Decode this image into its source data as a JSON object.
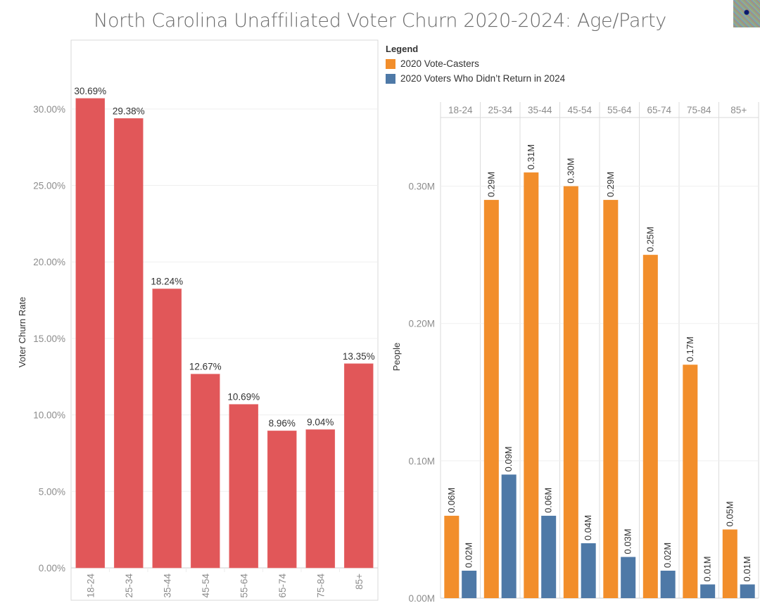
{
  "title": "North Carolina Unaffiliated Voter Churn 2020-2024: Age/Party",
  "thumbnail_icon": "map-thumbnail-icon",
  "legend": {
    "title": "Legend",
    "items": [
      {
        "label": "2020 Vote-Casters",
        "color": "#F28E2B"
      },
      {
        "label": "2020 Voters Who Didn’t Return in 2024",
        "color": "#4E79A7"
      }
    ]
  },
  "chart_data": [
    {
      "type": "bar",
      "title": "",
      "xlabel": "",
      "ylabel": "Voter Churn Rate",
      "categories": [
        "18-24",
        "25-34",
        "35-44",
        "45-54",
        "55-64",
        "65-74",
        "75-84",
        "85+"
      ],
      "values": [
        30.69,
        29.38,
        18.24,
        12.67,
        10.69,
        8.96,
        9.04,
        13.35
      ],
      "data_labels": [
        "30.69%",
        "29.38%",
        "18.24%",
        "12.67%",
        "10.69%",
        "8.96%",
        "9.04%",
        "13.35%"
      ],
      "yticks": [
        0,
        5,
        10,
        15,
        20,
        25,
        30
      ],
      "ytick_labels": [
        "0.00%",
        "5.00%",
        "10.00%",
        "15.00%",
        "20.00%",
        "25.00%",
        "30.00%"
      ],
      "ylim": [
        0,
        34.5
      ],
      "color": "#E15759",
      "grid": true,
      "x_label_orientation": "vertical"
    },
    {
      "type": "bar",
      "title": "",
      "xlabel": "",
      "ylabel": "People",
      "categories": [
        "18-24",
        "25-34",
        "35-44",
        "45-54",
        "55-64",
        "65-74",
        "75-84",
        "85+"
      ],
      "series": [
        {
          "name": "2020 Vote-Casters",
          "color": "#F28E2B",
          "values": [
            0.06,
            0.29,
            0.31,
            0.3,
            0.29,
            0.25,
            0.17,
            0.05
          ],
          "data_labels": [
            "0.06M",
            "0.29M",
            "0.31M",
            "0.30M",
            "0.29M",
            "0.25M",
            "0.17M",
            "0.05M"
          ]
        },
        {
          "name": "2020 Voters Who Didn’t Return in 2024",
          "color": "#4E79A7",
          "values": [
            0.02,
            0.09,
            0.06,
            0.04,
            0.03,
            0.02,
            0.01,
            0.01
          ],
          "data_labels": [
            "0.02M",
            "0.09M",
            "0.06M",
            "0.04M",
            "0.03M",
            "0.02M",
            "0.01M",
            "0.01M"
          ]
        }
      ],
      "yticks": [
        0,
        0.1,
        0.2,
        0.3
      ],
      "ytick_labels": [
        "0.00M",
        "0.10M",
        "0.20M",
        "0.30M"
      ],
      "ylim": [
        0,
        0.35
      ],
      "units": "millions",
      "grid": true,
      "legend": "top",
      "header_categories": true
    }
  ]
}
